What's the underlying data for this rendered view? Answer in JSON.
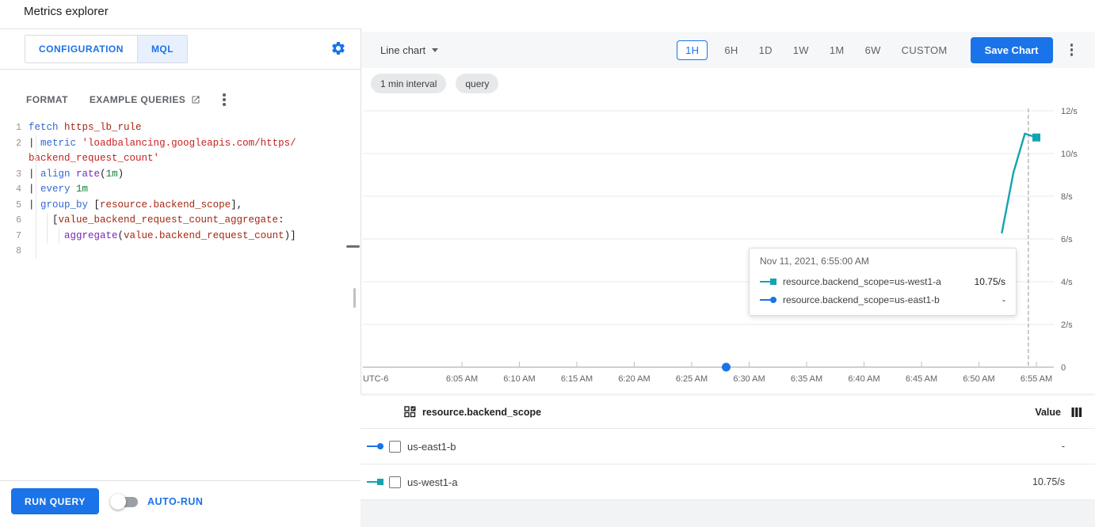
{
  "page": {
    "title": "Metrics explorer"
  },
  "left_panel": {
    "tabs": [
      {
        "label": "CONFIGURATION",
        "selected": false
      },
      {
        "label": "MQL",
        "selected": true
      }
    ],
    "format_label": "FORMAT",
    "example_queries_label": "EXAMPLE QUERIES",
    "run_query_label": "RUN QUERY",
    "auto_run_label": "AUTO-RUN",
    "auto_run_on": false,
    "editor": {
      "lines": [
        {
          "num": "1",
          "tokens": [
            [
              "kw",
              "fetch"
            ],
            [
              "pl",
              " "
            ],
            [
              "id",
              "https_lb_rule"
            ]
          ]
        },
        {
          "num": "2",
          "tokens": [
            [
              "pl",
              "| "
            ],
            [
              "kw",
              "metric"
            ],
            [
              "pl",
              " "
            ],
            [
              "str",
              "'loadbalancing.googleapis.com/https/"
            ]
          ]
        },
        {
          "num": "",
          "tokens": [
            [
              "str",
              "backend_request_count'"
            ]
          ]
        },
        {
          "num": "3",
          "tokens": [
            [
              "pl",
              "| "
            ],
            [
              "kw",
              "align"
            ],
            [
              "pl",
              " "
            ],
            [
              "fn",
              "rate"
            ],
            [
              "pl",
              "("
            ],
            [
              "dur",
              "1m"
            ],
            [
              "pl",
              ")"
            ]
          ]
        },
        {
          "num": "4",
          "tokens": [
            [
              "pl",
              "| "
            ],
            [
              "kw",
              "every"
            ],
            [
              "pl",
              " "
            ],
            [
              "dur",
              "1m"
            ]
          ]
        },
        {
          "num": "5",
          "tokens": [
            [
              "pl",
              "| "
            ],
            [
              "kw",
              "group_by"
            ],
            [
              "pl",
              " ["
            ],
            [
              "id",
              "resource.backend_scope"
            ],
            [
              "pl",
              "],"
            ]
          ]
        },
        {
          "num": "6",
          "tokens": [
            [
              "pl",
              "    ["
            ],
            [
              "id",
              "value_backend_request_count_aggregate"
            ],
            [
              "pl",
              ":"
            ]
          ]
        },
        {
          "num": "7",
          "tokens": [
            [
              "pl",
              "      "
            ],
            [
              "fn",
              "aggregate"
            ],
            [
              "pl",
              "("
            ],
            [
              "id",
              "value.backend_request_count"
            ],
            [
              "pl",
              ")]"
            ]
          ]
        },
        {
          "num": "8",
          "tokens": []
        }
      ]
    }
  },
  "chart_panel": {
    "chart_type_label": "Line chart",
    "time_ranges": [
      "1H",
      "6H",
      "1D",
      "1W",
      "1M",
      "6W",
      "CUSTOM"
    ],
    "selected_range": "1H",
    "save_chart_label": "Save Chart",
    "chips": [
      "1 min interval",
      "query"
    ],
    "tooltip": {
      "timestamp": "Nov 11, 2021, 6:55:00 AM",
      "rows": [
        {
          "label": "resource.backend_scope=us-west1-a",
          "value": "10.75/s",
          "marker": "square",
          "color": "#12a4af"
        },
        {
          "label": "resource.backend_scope=us-east1-b",
          "value": "-",
          "marker": "circle",
          "color": "#1a73e8"
        }
      ]
    }
  },
  "chart_data": {
    "type": "line",
    "grid": true,
    "x_axis": {
      "timezone_label": "UTC-6",
      "tick_labels": [
        "6:05 AM",
        "6:10 AM",
        "6:15 AM",
        "6:20 AM",
        "6:25 AM",
        "6:30 AM",
        "6:35 AM",
        "6:40 AM",
        "6:45 AM",
        "6:50 AM",
        "6:55 AM"
      ],
      "tick_minutes": [
        5,
        10,
        15,
        20,
        25,
        30,
        35,
        40,
        45,
        50,
        55
      ]
    },
    "y_axis": {
      "tick_labels": [
        "12/s",
        "10/s",
        "8/s",
        "6/s",
        "4/s",
        "2/s",
        "0"
      ],
      "tick_values": [
        12,
        10,
        8,
        6,
        4,
        2,
        0
      ],
      "ylim": [
        0,
        12
      ],
      "unit": "/s"
    },
    "crosshair_minute": 54.3,
    "series": [
      {
        "name": "resource.backend_scope=us-west1-a",
        "color": "#12a4af",
        "marker": "square",
        "points": [
          {
            "minute": 52,
            "value": 6.3
          },
          {
            "minute": 53,
            "value": 9.1
          },
          {
            "minute": 54,
            "value": 10.93
          },
          {
            "minute": 55,
            "value": 10.75
          }
        ]
      },
      {
        "name": "resource.backend_scope=us-east1-b",
        "color": "#1a73e8",
        "marker": "circle",
        "points": [
          {
            "minute": 28,
            "value": 0
          }
        ]
      }
    ]
  },
  "result_table": {
    "name_header": "resource.backend_scope",
    "value_header": "Value",
    "rows": [
      {
        "label": "us-east1-b",
        "value": "-",
        "marker": "circle",
        "color": "#1a73e8",
        "checked": false
      },
      {
        "label": "us-west1-a",
        "value": "10.75/s",
        "marker": "square",
        "color": "#12a4af",
        "checked": false
      }
    ]
  },
  "colors": {
    "accent": "#1a73e8",
    "teal": "#12a4af",
    "blue": "#1a73e8",
    "toolbar_bg": "#f6f7f8"
  }
}
